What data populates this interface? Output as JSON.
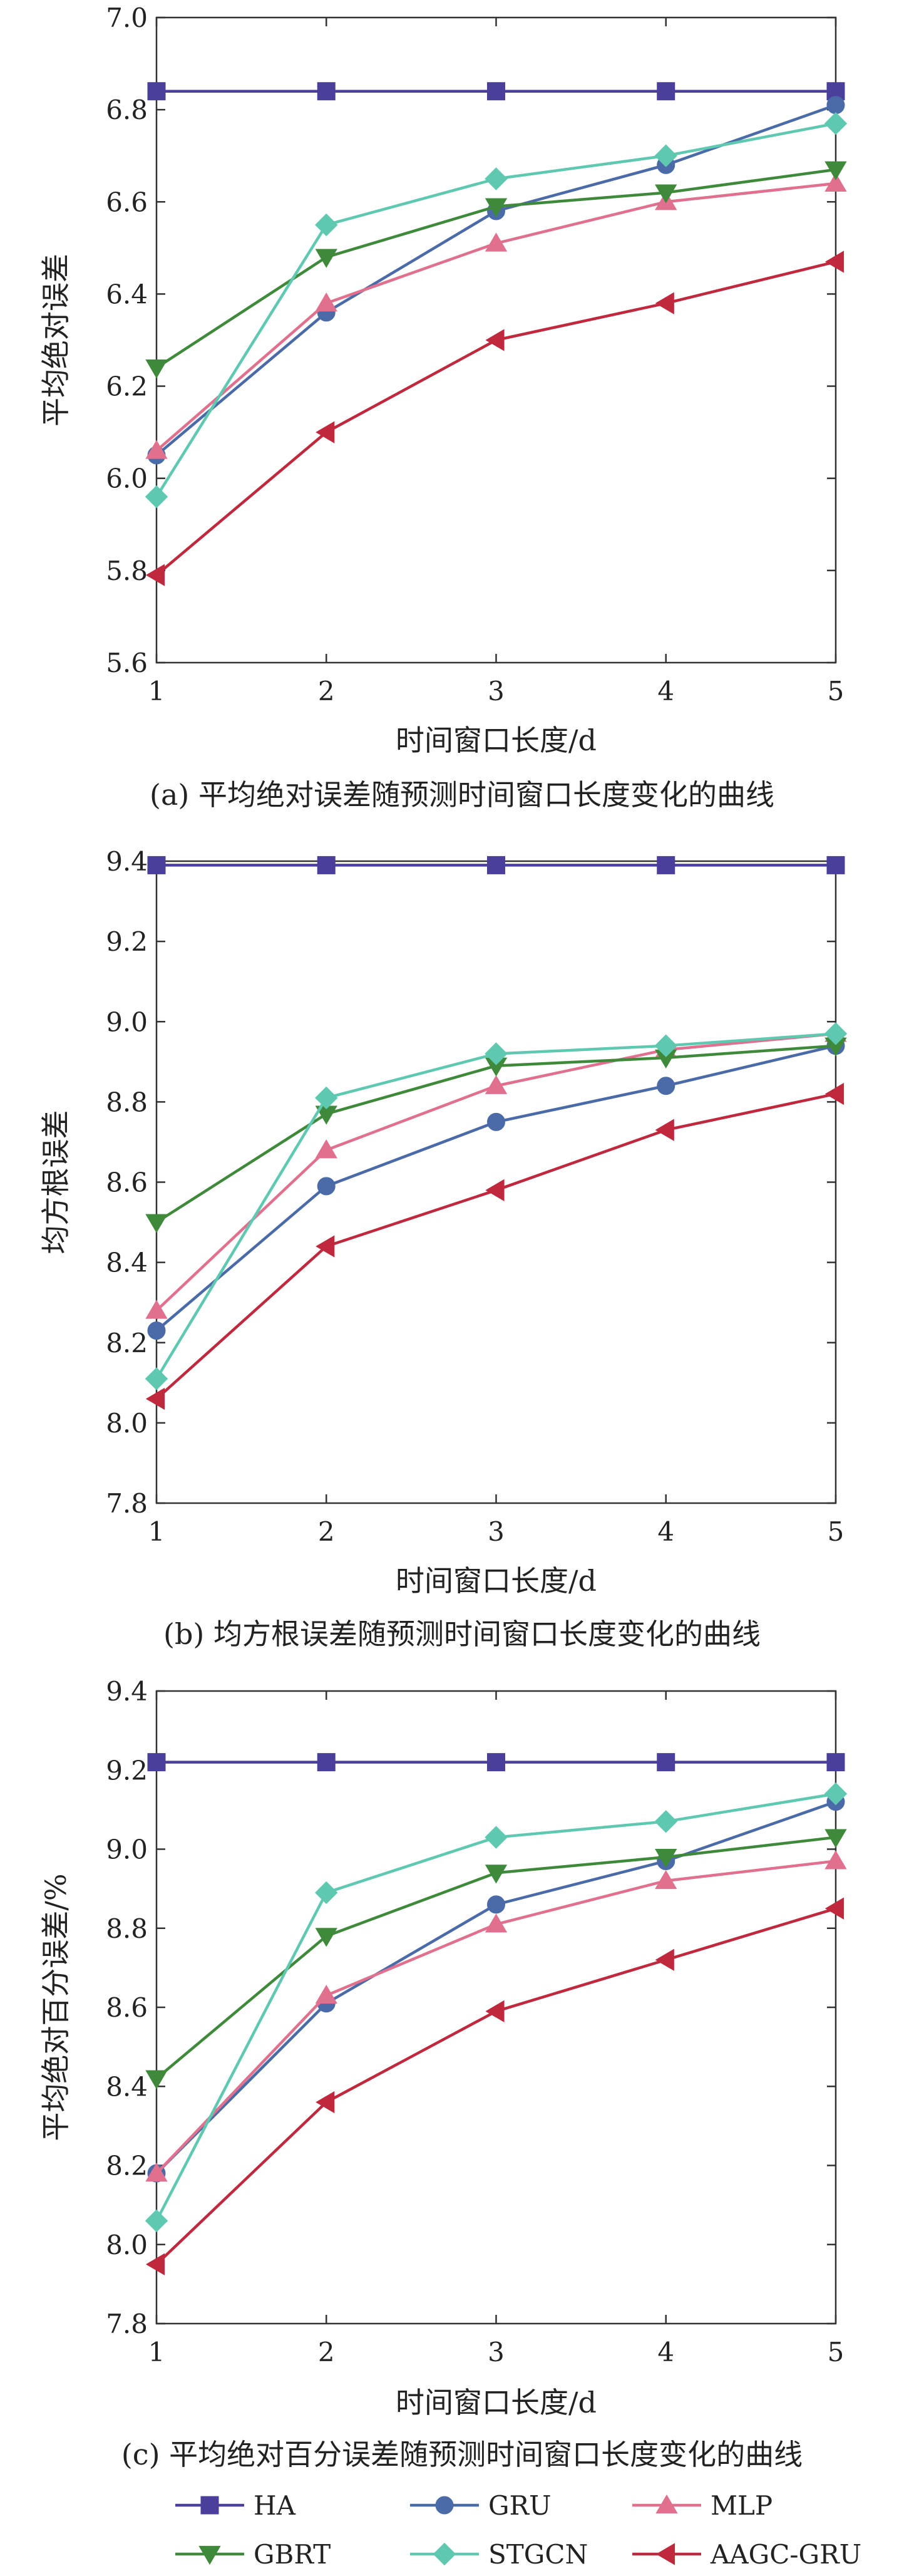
{
  "series_styles": [
    {
      "name": "HA",
      "color": "#4a3f9a",
      "marker": "square"
    },
    {
      "name": "GRU",
      "color": "#4a6aa8",
      "marker": "circle"
    },
    {
      "name": "MLP",
      "color": "#e0708e",
      "marker": "triangle-up"
    },
    {
      "name": "GBRT",
      "color": "#3f8a3a",
      "marker": "triangle-down"
    },
    {
      "name": "STGCN",
      "color": "#5ec8b0",
      "marker": "diamond"
    },
    {
      "name": "AAGC-GRU",
      "color": "#c0283e",
      "marker": "triangle-left"
    }
  ],
  "legend": {
    "placement": "bottom",
    "entries": [
      "HA",
      "GRU",
      "MLP",
      "GBRT",
      "STGCN",
      "AAGC-GRU"
    ]
  },
  "chart_data": [
    {
      "type": "line",
      "caption": "(a) 平均绝对误差随预测时间窗口长度变化的曲线",
      "xlabel": "时间窗口长度/d",
      "ylabel": "平均绝对误差",
      "x": [
        1,
        2,
        3,
        4,
        5
      ],
      "xticks": [
        "1",
        "2",
        "3",
        "4",
        "5"
      ],
      "ylim": [
        5.6,
        7.0
      ],
      "yticks": [
        "5.6",
        "5.8",
        "6.0",
        "6.2",
        "6.4",
        "6.6",
        "6.8",
        "7.0"
      ],
      "grid": false,
      "series": [
        {
          "name": "HA",
          "values": [
            6.84,
            6.84,
            6.84,
            6.84,
            6.84
          ]
        },
        {
          "name": "GRU",
          "values": [
            6.05,
            6.36,
            6.58,
            6.68,
            6.81
          ]
        },
        {
          "name": "MLP",
          "values": [
            6.06,
            6.38,
            6.51,
            6.6,
            6.64
          ]
        },
        {
          "name": "GBRT",
          "values": [
            6.24,
            6.48,
            6.59,
            6.62,
            6.67
          ]
        },
        {
          "name": "STGCN",
          "values": [
            5.96,
            6.55,
            6.65,
            6.7,
            6.77
          ]
        },
        {
          "name": "AAGC-GRU",
          "values": [
            5.79,
            6.1,
            6.3,
            6.38,
            6.47
          ]
        }
      ]
    },
    {
      "type": "line",
      "caption": "(b) 均方根误差随预测时间窗口长度变化的曲线",
      "xlabel": "时间窗口长度/d",
      "ylabel": "均方根误差",
      "x": [
        1,
        2,
        3,
        4,
        5
      ],
      "xticks": [
        "1",
        "2",
        "3",
        "4",
        "5"
      ],
      "ylim": [
        7.8,
        9.4
      ],
      "yticks": [
        "7.8",
        "8.0",
        "8.2",
        "8.4",
        "8.6",
        "8.8",
        "9.0",
        "9.2",
        "9.4"
      ],
      "grid": false,
      "series": [
        {
          "name": "HA",
          "values": [
            9.39,
            9.39,
            9.39,
            9.39,
            9.39
          ]
        },
        {
          "name": "GRU",
          "values": [
            8.23,
            8.59,
            8.75,
            8.84,
            8.94
          ]
        },
        {
          "name": "MLP",
          "values": [
            8.28,
            8.68,
            8.84,
            8.93,
            8.97
          ]
        },
        {
          "name": "GBRT",
          "values": [
            8.5,
            8.77,
            8.89,
            8.91,
            8.94
          ]
        },
        {
          "name": "STGCN",
          "values": [
            8.11,
            8.81,
            8.92,
            8.94,
            8.97
          ]
        },
        {
          "name": "AAGC-GRU",
          "values": [
            8.06,
            8.44,
            8.58,
            8.73,
            8.82
          ]
        }
      ]
    },
    {
      "type": "line",
      "caption": "(c) 平均绝对百分误差随预测时间窗口长度变化的曲线",
      "xlabel": "时间窗口长度/d",
      "ylabel": "平均绝对百分误差/%",
      "x": [
        1,
        2,
        3,
        4,
        5
      ],
      "xticks": [
        "1",
        "2",
        "3",
        "4",
        "5"
      ],
      "ylim": [
        7.8,
        9.4
      ],
      "yticks": [
        "7.8",
        "8.0",
        "8.2",
        "8.4",
        "8.6",
        "8.8",
        "9.0",
        "9.2",
        "9.4"
      ],
      "grid": false,
      "series": [
        {
          "name": "HA",
          "values": [
            9.22,
            9.22,
            9.22,
            9.22,
            9.22
          ]
        },
        {
          "name": "GRU",
          "values": [
            8.18,
            8.61,
            8.86,
            8.97,
            9.12
          ]
        },
        {
          "name": "MLP",
          "values": [
            8.18,
            8.63,
            8.81,
            8.92,
            8.97
          ]
        },
        {
          "name": "GBRT",
          "values": [
            8.42,
            8.78,
            8.94,
            8.98,
            9.03
          ]
        },
        {
          "name": "STGCN",
          "values": [
            8.06,
            8.89,
            9.03,
            9.07,
            9.14
          ]
        },
        {
          "name": "AAGC-GRU",
          "values": [
            7.95,
            8.36,
            8.59,
            8.72,
            8.85
          ]
        }
      ]
    }
  ]
}
